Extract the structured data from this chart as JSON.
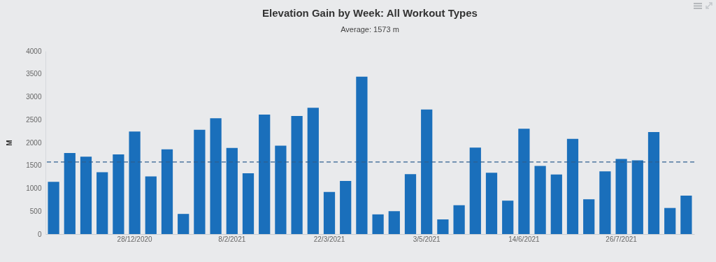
{
  "chart_data": {
    "type": "bar",
    "title": "Elevation Gain by Week: All Workout Types",
    "subtitle": "Average: 1573 m",
    "ylabel": "M",
    "categories": [
      null,
      null,
      null,
      null,
      null,
      "28/12/2020",
      null,
      null,
      null,
      null,
      null,
      "8/2/2021",
      null,
      null,
      null,
      null,
      null,
      "22/3/2021",
      null,
      null,
      null,
      null,
      null,
      "3/5/2021",
      null,
      null,
      null,
      null,
      null,
      "14/6/2021",
      null,
      null,
      null,
      null,
      null,
      "26/7/2021",
      null,
      null,
      null,
      null
    ],
    "values": [
      1140,
      1770,
      1690,
      1350,
      1740,
      2240,
      1260,
      1850,
      440,
      2280,
      2530,
      1880,
      1330,
      2610,
      1930,
      2580,
      2760,
      920,
      1160,
      3440,
      430,
      500,
      1310,
      2720,
      320,
      630,
      1890,
      1340,
      730,
      2300,
      1490,
      1300,
      2080,
      760,
      1370,
      1640,
      1610,
      2230,
      570,
      840
    ],
    "color": "#1a6fbb",
    "ylim": [
      0,
      4000
    ],
    "yticks": [
      0,
      500,
      1000,
      1500,
      2000,
      2500,
      3000,
      3500,
      4000
    ],
    "grid": false,
    "ref_lines": [
      {
        "axis": "y",
        "value": 1573,
        "color": "#2f5f8f",
        "line_style": "dashed"
      }
    ]
  }
}
